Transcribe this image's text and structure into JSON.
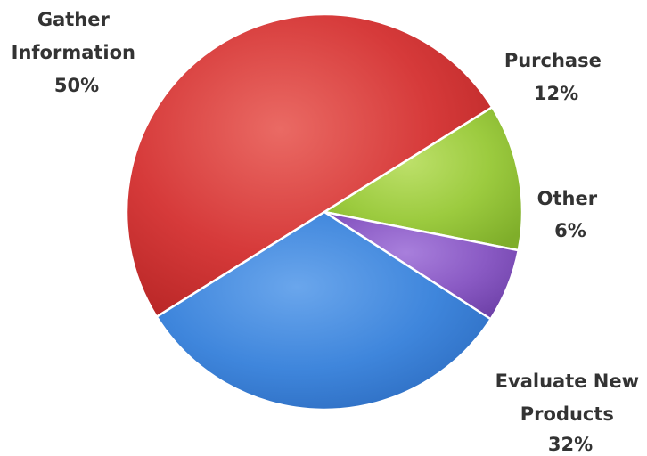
{
  "chart_data": {
    "type": "pie",
    "title": "",
    "slices": [
      {
        "label_lines": [
          "Gather",
          "Information"
        ],
        "value": 50,
        "value_label": "50%",
        "color": "#d63a3a",
        "color_light": "#ea6a64",
        "color_dark": "#b52424"
      },
      {
        "label_lines": [
          "Purchase"
        ],
        "value": 12,
        "value_label": "12%",
        "color": "#9ccb3f",
        "color_light": "#bde06a",
        "color_dark": "#7fae2a"
      },
      {
        "label_lines": [
          "Other"
        ],
        "value": 6,
        "value_label": "6%",
        "color": "#8a5ac4",
        "color_light": "#a87fdc",
        "color_dark": "#6c3fa6"
      },
      {
        "label_lines": [
          "Evaluate New",
          "Products"
        ],
        "value": 32,
        "value_label": "32%",
        "color": "#3f86dc",
        "color_light": "#6aa6ec",
        "color_dark": "#2a69bd"
      }
    ],
    "legend": "none",
    "data_labels": "outside"
  }
}
